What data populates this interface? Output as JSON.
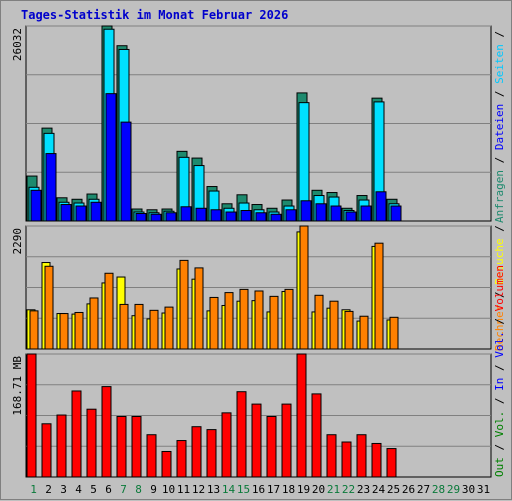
{
  "title": "Tages-Statistik im Monat Februar 2026",
  "chart_data": {
    "type": "bar",
    "title": "Tages-Statistik im Monat Februar 2026",
    "categories": [
      "1",
      "2",
      "3",
      "4",
      "5",
      "6",
      "7",
      "8",
      "9",
      "10",
      "11",
      "12",
      "13",
      "14",
      "15",
      "16",
      "17",
      "18",
      "19",
      "20",
      "21",
      "22",
      "23",
      "24",
      "25",
      "26",
      "27",
      "28",
      "29",
      "30",
      "31"
    ],
    "weekend_days": [
      "1",
      "7",
      "8",
      "14",
      "15",
      "21",
      "22",
      "28",
      "29"
    ],
    "panels": [
      {
        "id": "requests",
        "max_label": "26032",
        "ymax": 26032,
        "series": [
          {
            "name": "Anfragen",
            "color": "#1e8a6e",
            "values": [
              6000,
              12400,
              3100,
              2900,
              3600,
              26032,
              23400,
              1600,
              1500,
              1600,
              9300,
              8400,
              4600,
              2300,
              3500,
              2200,
              1700,
              2800,
              17100,
              4100,
              3800,
              1700,
              3400,
              16400,
              2900,
              0,
              0,
              0,
              0,
              0,
              0
            ]
          },
          {
            "name": "Seiten",
            "color": "#00e0ff",
            "values": [
              4500,
              11700,
              2500,
              2400,
              2900,
              25600,
              22900,
              1200,
              1100,
              1300,
              8500,
              7400,
              4000,
              1700,
              2400,
              1500,
              1200,
              2000,
              15800,
              3400,
              3200,
              1400,
              2800,
              15900,
              2300,
              0,
              0,
              0,
              0,
              0,
              0
            ]
          },
          {
            "name": "Dateien",
            "color": "#0000ff",
            "values": [
              4100,
              9000,
              2200,
              2000,
              2500,
              17000,
              13200,
              1000,
              900,
              1100,
              1900,
              1700,
              1500,
              1200,
              1400,
              1100,
              900,
              1500,
              2700,
              2300,
              2000,
              1200,
              2000,
              3900,
              2000,
              0,
              0,
              0,
              0,
              0,
              0
            ]
          }
        ],
        "axis_labels": [
          {
            "text": "Anfragen",
            "color": "#1e8a6e"
          },
          {
            "text": " / ",
            "color": "#000000"
          },
          {
            "text": "Dateien",
            "color": "#0000ff"
          },
          {
            "text": " / ",
            "color": "#000000"
          },
          {
            "text": "Seiten",
            "color": "#00c8ff"
          },
          {
            "text": " / ",
            "color": "#000000"
          }
        ]
      },
      {
        "id": "visits",
        "max_label": "2290",
        "ymax": 2290,
        "series": [
          {
            "name": "Besuche",
            "color": "#ffff00",
            "values": [
              730,
              1610,
              660,
              650,
              840,
              1230,
              1340,
              620,
              560,
              670,
              1490,
              1300,
              710,
              810,
              890,
              900,
              690,
              1070,
              2180,
              690,
              760,
              730,
              520,
              1910,
              540,
              0,
              0,
              0,
              0,
              0,
              0
            ]
          },
          {
            "name": "Rechner",
            "color": "#ff8000",
            "values": [
              710,
              1540,
              660,
              680,
              950,
              1410,
              830,
              830,
              720,
              780,
              1650,
              1510,
              960,
              1050,
              1110,
              1080,
              980,
              1110,
              2290,
              1000,
              890,
              700,
              610,
              1970,
              590,
              0,
              0,
              0,
              0,
              0,
              0
            ]
          }
        ],
        "axis_labels": [
          {
            "text": "Rechner",
            "color": "#ff8000"
          },
          {
            "text": " / ",
            "color": "#000000"
          },
          {
            "text": "Besuche",
            "color": "#ffff00"
          },
          {
            "text": " / ",
            "color": "#000000"
          }
        ]
      },
      {
        "id": "volume",
        "max_label": "168.71 MB",
        "ymax": 168.71,
        "series": [
          {
            "name": "Volumen",
            "color": "#ff0000",
            "values": [
              168.71,
              73,
              85,
              118,
              93,
              124,
              83,
              83,
              58,
              35,
              50,
              69,
              65,
              88,
              117,
              100,
              83,
              100,
              168.71,
              114,
              58,
              48,
              58,
              46,
              39,
              0,
              0,
              0,
              0,
              0,
              0
            ]
          }
        ],
        "axis_labels": [
          {
            "text": "Out",
            "color": "#008000"
          },
          {
            "text": " / ",
            "color": "#000000"
          },
          {
            "text": "Vol.",
            "color": "#008000"
          },
          {
            "text": " / ",
            "color": "#000000"
          },
          {
            "text": "In",
            "color": "#0000ff"
          },
          {
            "text": " / ",
            "color": "#000000"
          },
          {
            "text": "Vol.",
            "color": "#0000ff"
          },
          {
            "text": " / ",
            "color": "#000000"
          },
          {
            "text": "Volumen",
            "color": "#ff0000"
          }
        ]
      }
    ]
  }
}
